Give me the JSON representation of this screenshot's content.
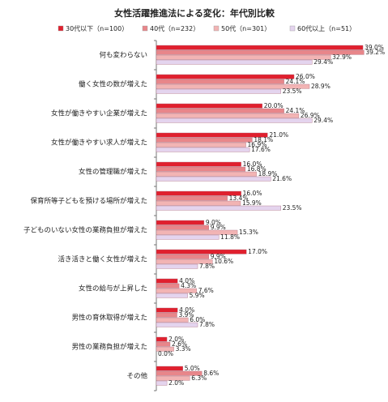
{
  "chart_data": {
    "type": "hbar",
    "title": "女性活躍推進法による変化：年代別比較",
    "categories": [
      "何も変わらない",
      "働く女性の数が増えた",
      "女性が働きやすい企業が増えた",
      "女性が働きやすい求人が増えた",
      "女性の管理職が増えた",
      "保育所等子どもを預ける場所が増えた",
      "子どものいない女性の業務負担が増えた",
      "活き活きと働く女性が増えた",
      "女性の給与が上昇した",
      "男性の育休取得が増えた",
      "男性の業務負担が増えた",
      "その他"
    ],
    "series": [
      {
        "name": "30代以下（n=100）",
        "color": "#e0202e",
        "values": [
          39.0,
          26.0,
          20.0,
          21.0,
          16.0,
          16.0,
          9.0,
          17.0,
          4.0,
          4.0,
          2.0,
          5.0
        ],
        "value_labels": [
          "39.0%",
          "26.0%",
          "20.0%",
          "21.0%",
          "16.0%",
          "16.0%",
          "9.0%",
          "17.0%",
          "4.0%",
          "4.0%",
          "2.0%",
          "5.0%"
        ]
      },
      {
        "name": "40代（n=232）",
        "color": "#e8868a",
        "values": [
          39.2,
          24.1,
          24.1,
          18.1,
          16.8,
          13.4,
          9.9,
          9.9,
          4.3,
          3.9,
          2.6,
          8.6
        ],
        "value_labels": [
          "39.2%",
          "24.1%",
          "24.1%",
          "18.1%",
          "16.8%",
          "13.4%",
          "9.9%",
          "9.9%",
          "4.3%",
          "3.9%",
          "2.6%",
          "8.6%"
        ]
      },
      {
        "name": "50代（n=301）",
        "color": "#f2b4b4",
        "values": [
          32.9,
          28.9,
          26.9,
          16.9,
          18.9,
          15.9,
          15.3,
          10.6,
          7.6,
          6.0,
          3.3,
          6.3
        ],
        "value_labels": [
          "32.9%",
          "28.9%",
          "26.9%",
          "16.9%",
          "18.9%",
          "15.9%",
          "15.3%",
          "10.6%",
          "7.6%",
          "6.0%",
          "3.3%",
          "6.3%"
        ]
      },
      {
        "name": "60代以上（n=51）",
        "color": "#e4d4ee",
        "values": [
          29.4,
          23.5,
          29.4,
          17.6,
          21.6,
          23.5,
          11.8,
          7.8,
          5.9,
          7.8,
          0.0,
          2.0
        ],
        "value_labels": [
          "29.4%",
          "23.5%",
          "29.4%",
          "17.6%",
          "21.6%",
          "23.5%",
          "11.8%",
          "7.8%",
          "5.9%",
          "7.8%",
          "0.0%",
          "2.0%"
        ]
      }
    ]
  }
}
